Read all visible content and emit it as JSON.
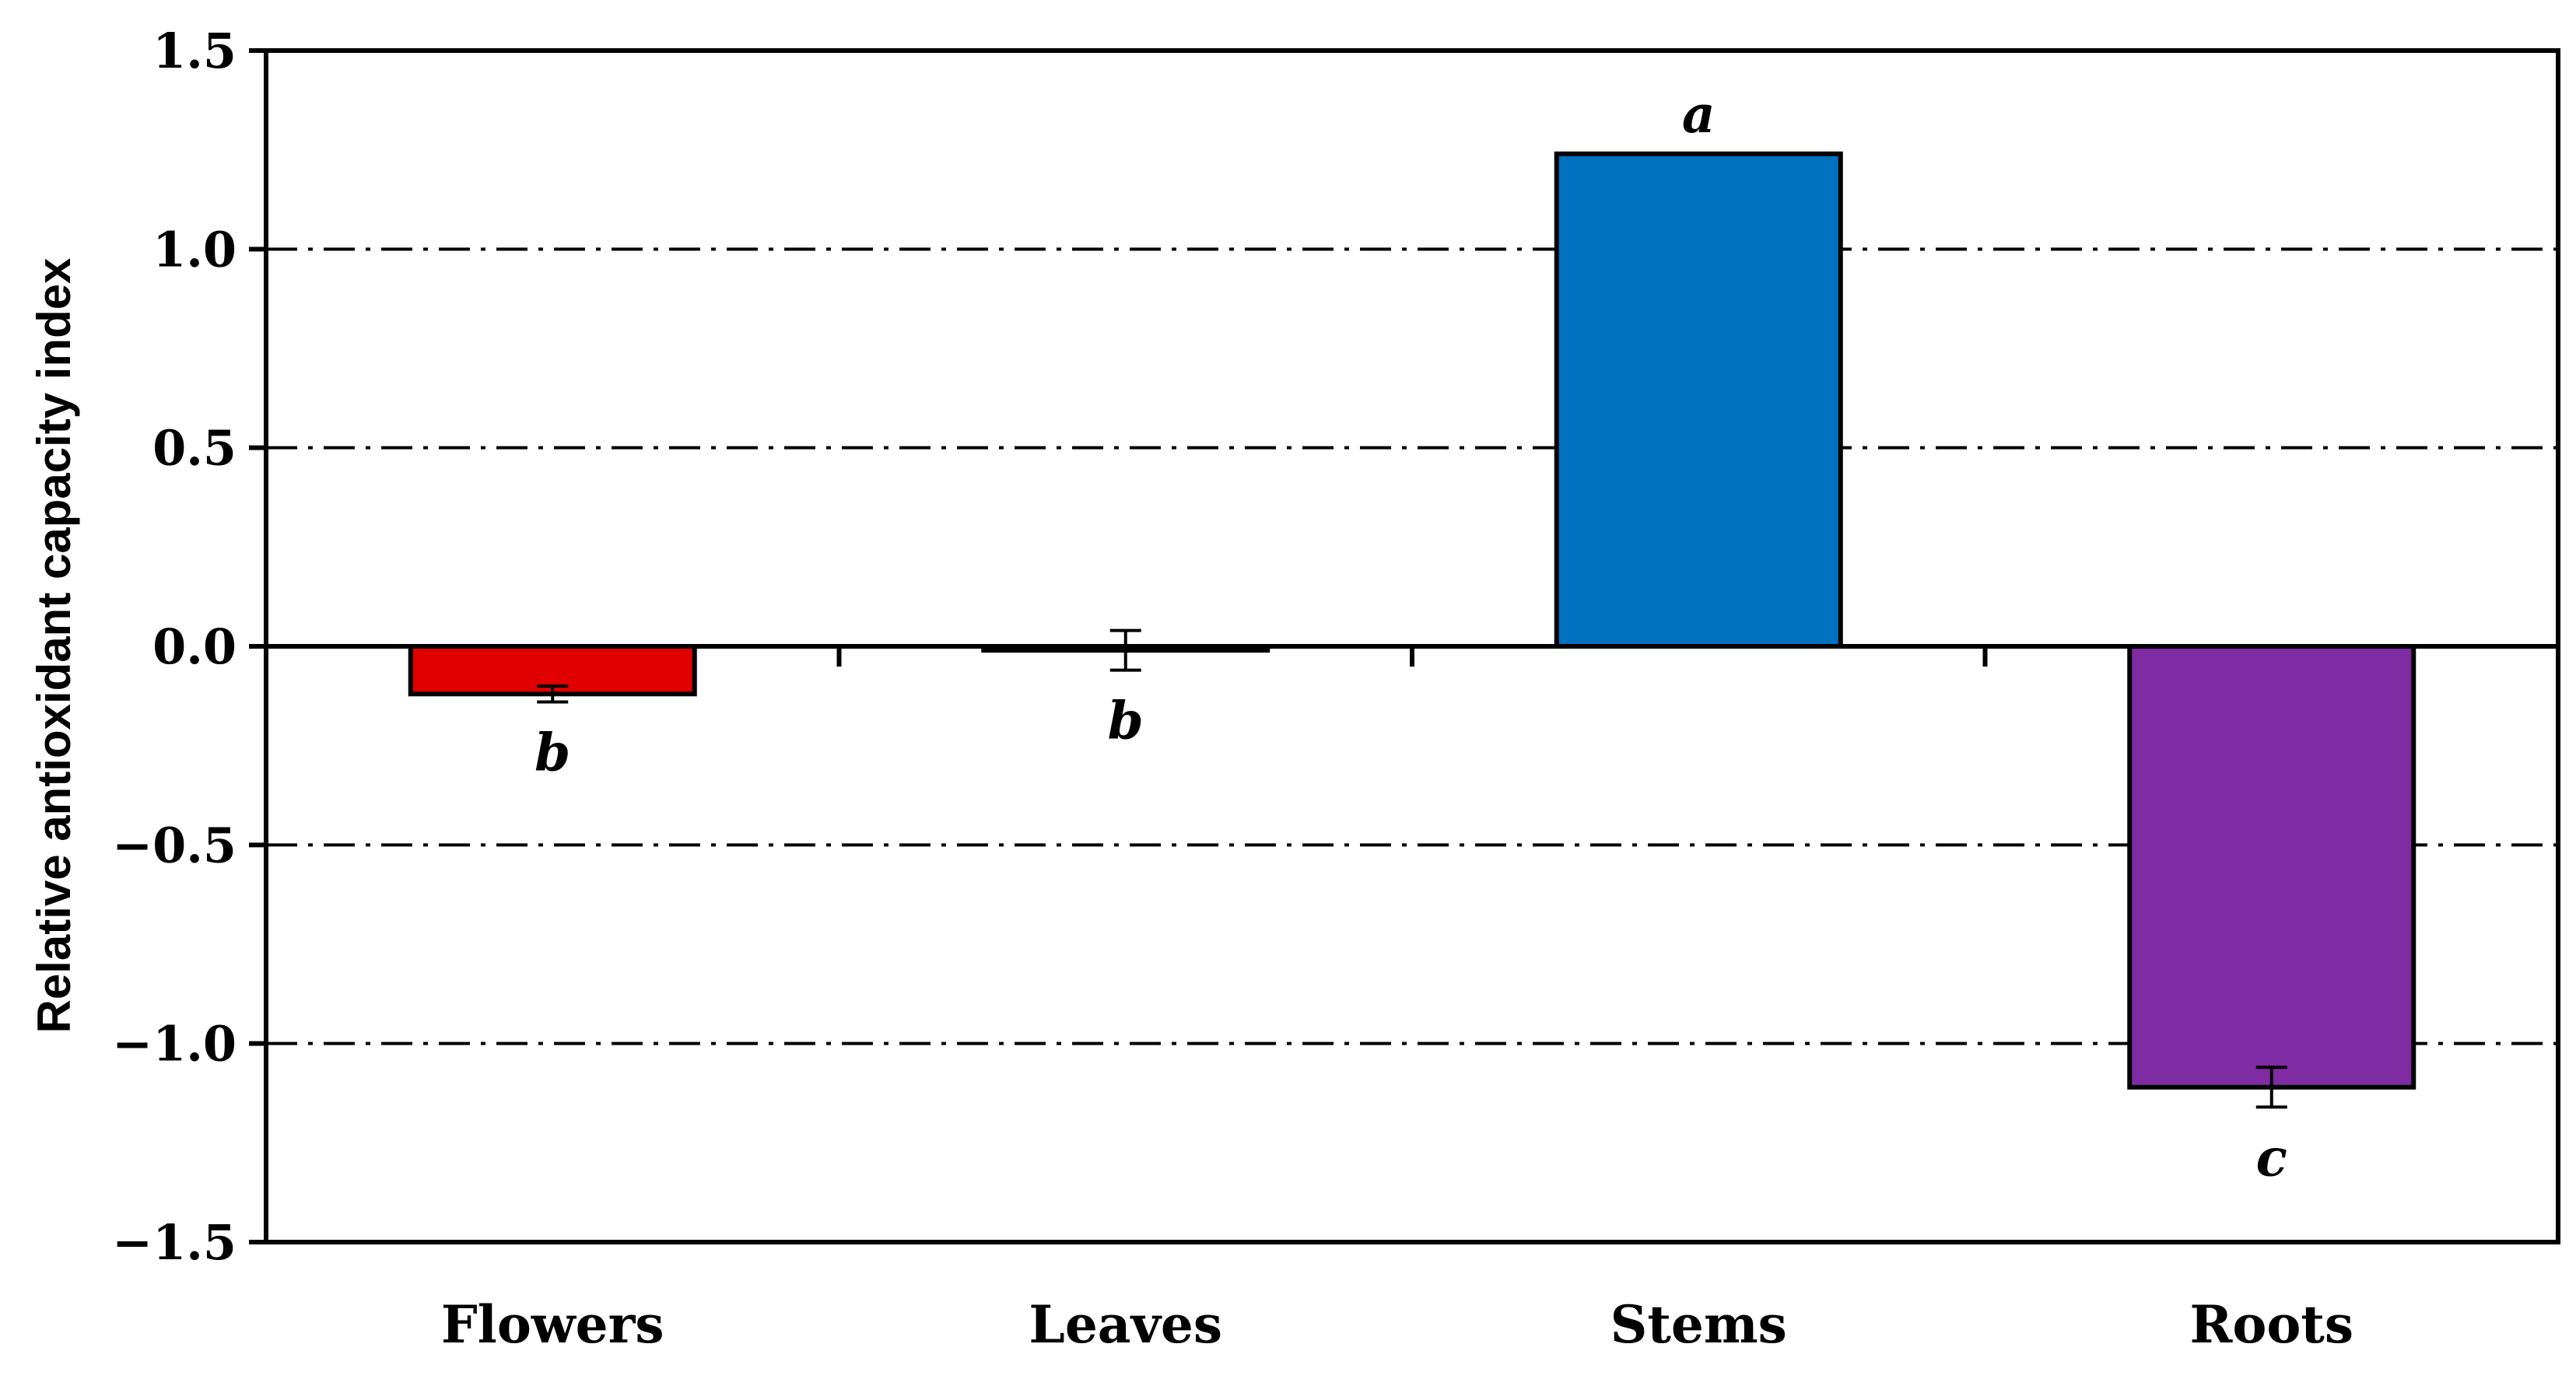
{
  "chart_data": {
    "type": "bar",
    "ylabel": "Relative antioxidant capacity index",
    "xlabel": "",
    "ylim": [
      -1.5,
      1.5
    ],
    "yticks": [
      1.5,
      1.0,
      0.5,
      0.0,
      -0.5,
      -1.0,
      -1.5
    ],
    "ytick_labels": [
      "1.5",
      "1.0",
      "0.5",
      "0.0",
      "−0.5",
      "−1.0",
      "−1.5"
    ],
    "grid": "dash-dot horizontal",
    "categories": [
      "Flowers",
      "Leaves",
      "Stems",
      "Roots"
    ],
    "values": [
      -0.12,
      -0.01,
      1.24,
      -1.11
    ],
    "errors": [
      0.02,
      0.05,
      0.0,
      0.05
    ],
    "significance_letters": [
      "b",
      "b",
      "a",
      "c"
    ],
    "colors": [
      "#e00000",
      "#0070c0",
      "#0070c0",
      "#7f2ba4"
    ]
  }
}
